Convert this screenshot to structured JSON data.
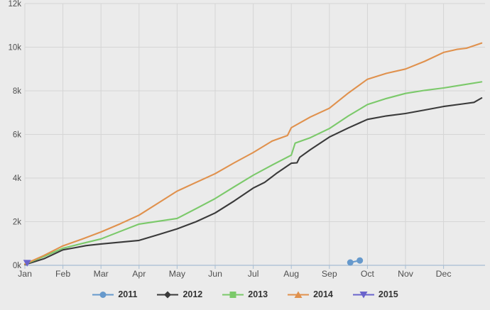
{
  "chart_data": {
    "type": "line",
    "title": "",
    "xlabel": "",
    "ylabel": "",
    "x_axis": {
      "tick_labels": [
        "Jan",
        "Feb",
        "Mar",
        "Apr",
        "May",
        "Jun",
        "Jul",
        "Aug",
        "Sep",
        "Oct",
        "Nov",
        "Dec"
      ],
      "range_months": [
        0,
        12.1
      ]
    },
    "y_axis": {
      "tick_labels": [
        "0k",
        "2k",
        "4k",
        "6k",
        "8k",
        "10k",
        "12k"
      ],
      "tick_values": [
        0,
        2000,
        4000,
        6000,
        8000,
        10000,
        12000
      ],
      "min": 0,
      "max": 12000
    },
    "grid": true,
    "legend_position": "bottom",
    "series": [
      {
        "name": "2011",
        "color": "#6699cc",
        "marker": "circle",
        "markers_visible": true,
        "points": [
          [
            8.55,
            130
          ],
          [
            8.8,
            220
          ]
        ]
      },
      {
        "name": "2012",
        "color": "#3a3a3a",
        "marker": "diamond",
        "markers_visible": false,
        "points": [
          [
            0,
            30
          ],
          [
            0.5,
            300
          ],
          [
            1,
            710
          ],
          [
            1.3,
            800
          ],
          [
            1.6,
            900
          ],
          [
            2,
            980
          ],
          [
            2.5,
            1060
          ],
          [
            3,
            1140
          ],
          [
            3.5,
            1400
          ],
          [
            4,
            1670
          ],
          [
            4.5,
            2000
          ],
          [
            5,
            2400
          ],
          [
            5.5,
            2950
          ],
          [
            6,
            3540
          ],
          [
            6.3,
            3800
          ],
          [
            6.6,
            4200
          ],
          [
            7,
            4680
          ],
          [
            7.15,
            4700
          ],
          [
            7.22,
            4950
          ],
          [
            7.5,
            5300
          ],
          [
            8,
            5880
          ],
          [
            8.5,
            6300
          ],
          [
            9,
            6690
          ],
          [
            9.5,
            6850
          ],
          [
            10,
            6960
          ],
          [
            10.5,
            7120
          ],
          [
            11,
            7280
          ],
          [
            11.5,
            7400
          ],
          [
            11.8,
            7470
          ],
          [
            12,
            7670
          ]
        ]
      },
      {
        "name": "2013",
        "color": "#7bc96a",
        "marker": "square",
        "markers_visible": false,
        "points": [
          [
            0,
            50
          ],
          [
            0.5,
            400
          ],
          [
            1,
            780
          ],
          [
            1.5,
            1000
          ],
          [
            2,
            1210
          ],
          [
            2.5,
            1550
          ],
          [
            3,
            1890
          ],
          [
            3.5,
            2020
          ],
          [
            4,
            2150
          ],
          [
            4.5,
            2600
          ],
          [
            5,
            3060
          ],
          [
            5.5,
            3600
          ],
          [
            6,
            4130
          ],
          [
            6.5,
            4600
          ],
          [
            7,
            5050
          ],
          [
            7.1,
            5600
          ],
          [
            7.5,
            5850
          ],
          [
            8,
            6270
          ],
          [
            8.5,
            6850
          ],
          [
            9,
            7370
          ],
          [
            9.5,
            7650
          ],
          [
            10,
            7880
          ],
          [
            10.5,
            8020
          ],
          [
            11,
            8130
          ],
          [
            11.5,
            8270
          ],
          [
            12,
            8410
          ]
        ]
      },
      {
        "name": "2014",
        "color": "#e0914d",
        "marker": "triangle-up",
        "markers_visible": false,
        "points": [
          [
            0,
            60
          ],
          [
            0.5,
            450
          ],
          [
            1,
            890
          ],
          [
            1.5,
            1200
          ],
          [
            2,
            1530
          ],
          [
            2.5,
            1900
          ],
          [
            3,
            2300
          ],
          [
            3.5,
            2850
          ],
          [
            4,
            3400
          ],
          [
            4.5,
            3800
          ],
          [
            5,
            4200
          ],
          [
            5.5,
            4700
          ],
          [
            6,
            5170
          ],
          [
            6.5,
            5700
          ],
          [
            6.9,
            5950
          ],
          [
            7,
            6310
          ],
          [
            7.5,
            6800
          ],
          [
            8,
            7200
          ],
          [
            8.5,
            7900
          ],
          [
            9,
            8530
          ],
          [
            9.5,
            8800
          ],
          [
            10,
            9000
          ],
          [
            10.5,
            9350
          ],
          [
            11,
            9760
          ],
          [
            11.35,
            9900
          ],
          [
            11.6,
            9950
          ],
          [
            12,
            10190
          ]
        ]
      },
      {
        "name": "2015",
        "color": "#6a64cc",
        "marker": "triangle-down",
        "markers_visible": true,
        "points": [
          [
            0.06,
            100
          ]
        ]
      }
    ]
  },
  "colors": {
    "page_background": "#ebebeb",
    "gridline": "#d5d5d5",
    "axis_line": "#a7bdd2",
    "axis_label": "#4f4f4f",
    "legend_label": "#333333"
  }
}
